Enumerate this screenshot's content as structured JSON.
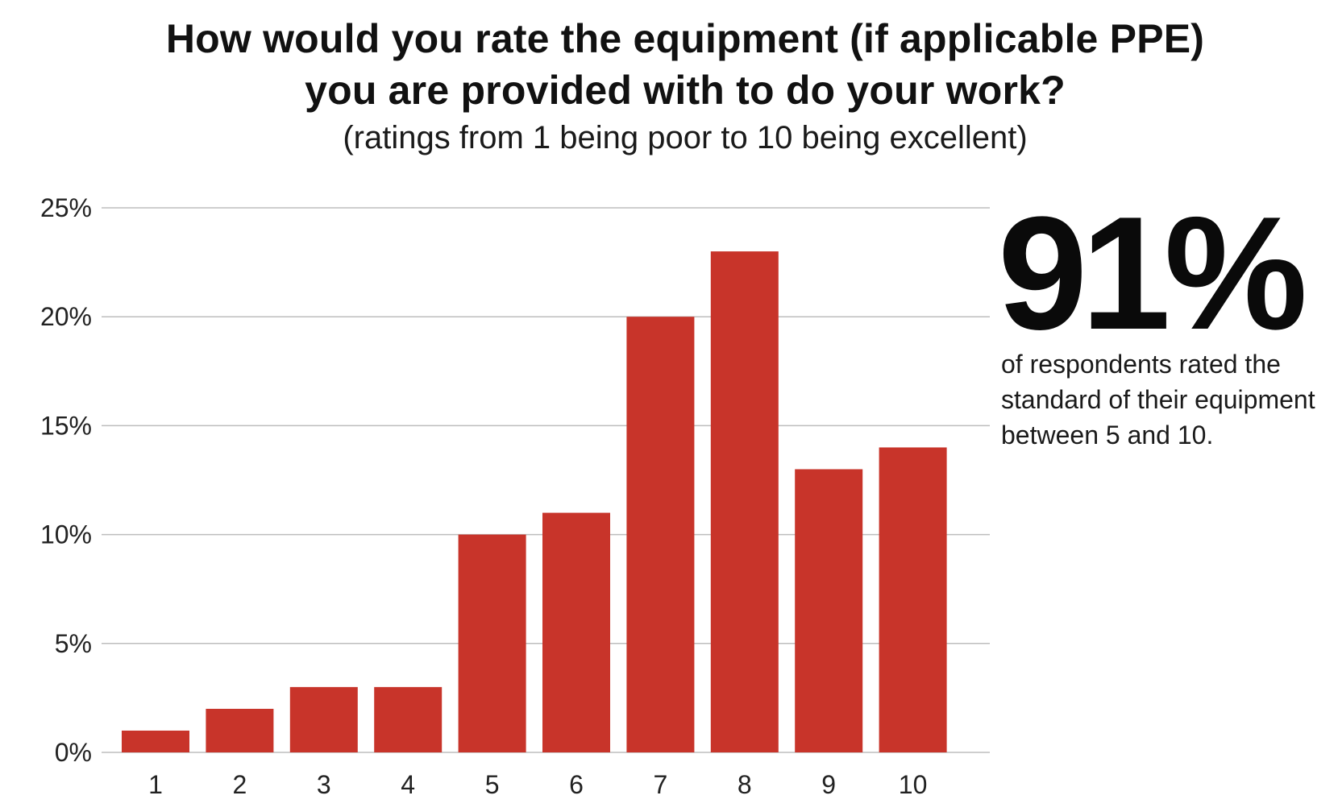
{
  "title_line1": "How would you rate the equipment (if applicable PPE)",
  "title_line2": "you are provided with to do your work?",
  "subtitle": "(ratings from 1 being poor to 10 being excellent)",
  "callout": {
    "value": "91%",
    "text": "of respondents rated the standard of their equipment between 5 and 10."
  },
  "colors": {
    "bar": "#c8342a",
    "grid": "#bdbdbd"
  },
  "chart_data": {
    "type": "bar",
    "title": "How would you rate the equipment (if applicable PPE) you are provided with to do your work?",
    "subtitle": "(ratings from 1 being poor to 10 being excellent)",
    "categories": [
      "1",
      "2",
      "3",
      "4",
      "5",
      "6",
      "7",
      "8",
      "9",
      "10"
    ],
    "values": [
      1,
      2,
      3,
      3,
      10,
      11,
      20,
      23,
      13,
      14
    ],
    "unit": "%",
    "ylim": [
      0,
      25
    ],
    "yticks": [
      0,
      5,
      10,
      15,
      20,
      25
    ],
    "ytick_labels": [
      "0%",
      "5%",
      "10%",
      "15%",
      "20%",
      "25%"
    ],
    "xlabel": "",
    "ylabel": "",
    "grid": true,
    "legend": "none"
  }
}
